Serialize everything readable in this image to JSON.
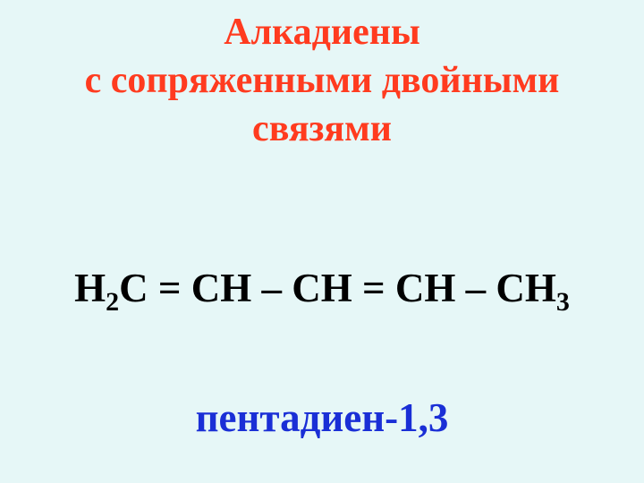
{
  "colors": {
    "background": "#e6f7f7",
    "title": "#ff3b1f",
    "formula": "#000000",
    "name": "#1a2fd6"
  },
  "typography": {
    "family": "Times New Roman",
    "title_fontsize_pt": 32,
    "body_fontsize_pt": 34,
    "weight": "bold"
  },
  "title": {
    "line1": "Алкадиены",
    "line2": "с сопряженными двойными",
    "line3": "связями"
  },
  "formula": {
    "parts": {
      "h": "Н",
      "sub2": "2",
      "c_eq_ch": "С = СН – СН = СН – СН",
      "sub3": "3"
    }
  },
  "compound_name": "пентадиен-1,3"
}
